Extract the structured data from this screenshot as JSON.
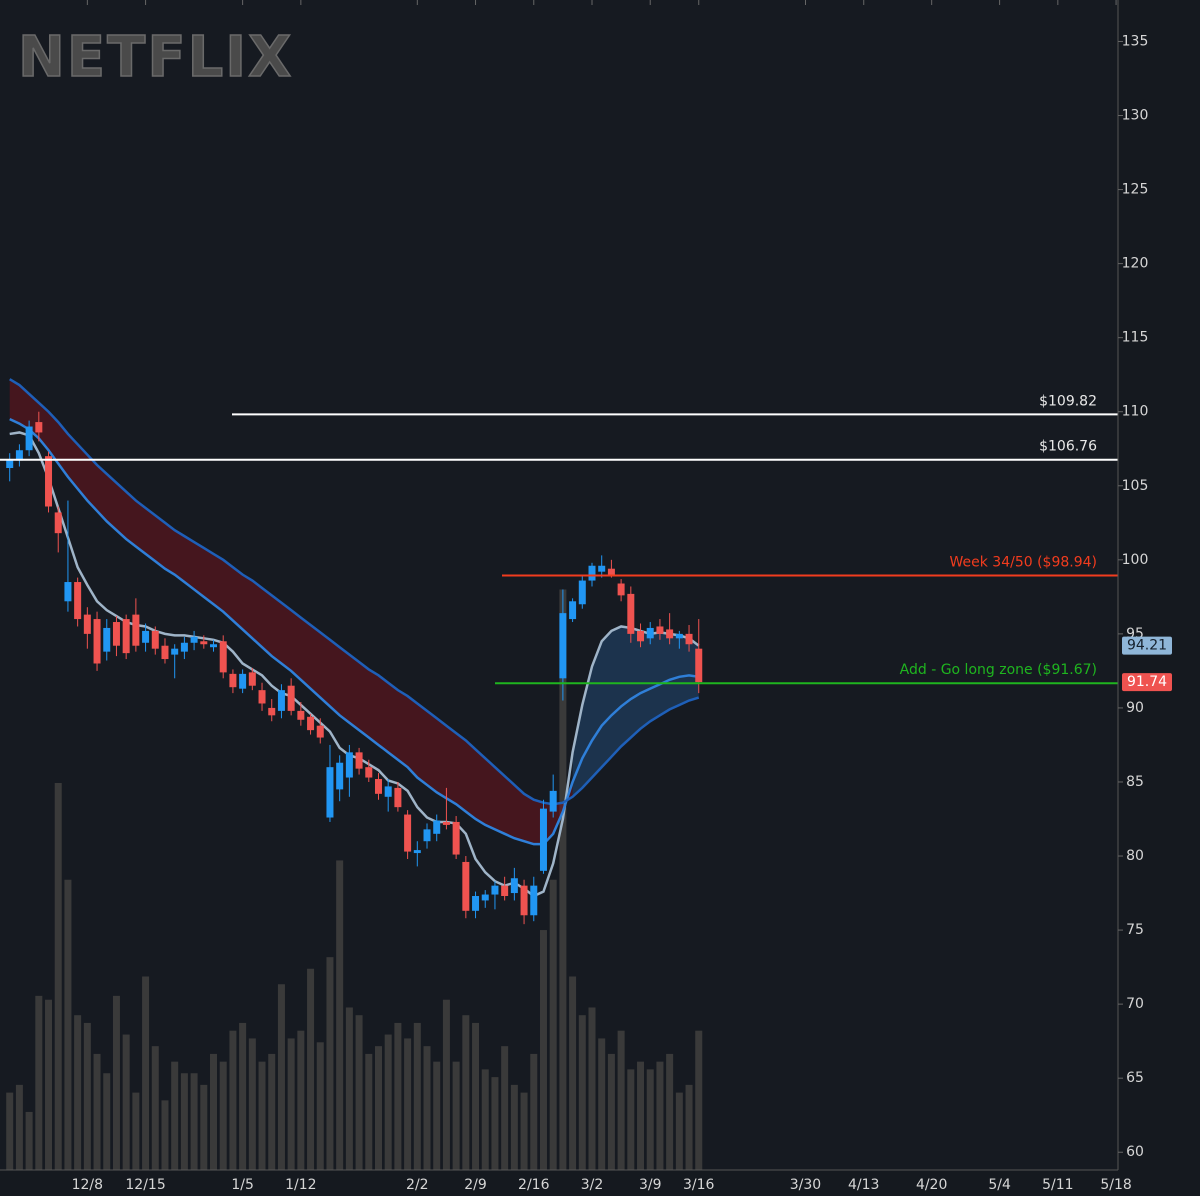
{
  "watermark": "NETFLIX",
  "chart_data": {
    "type": "candlestick",
    "up_color": "#2196f3",
    "down_color": "#ef5350",
    "volume_color": "#3a3a3a",
    "open": [
      106.2,
      106.7,
      107.4,
      109.3,
      107,
      103.2,
      97.2,
      98.5,
      96.3,
      96,
      93.8,
      95.8,
      96,
      96.3,
      94.4,
      95.2,
      94.2,
      93.6,
      93.8,
      94.4,
      94.5,
      94.1,
      94.5,
      92.3,
      91.3,
      92.4,
      91.2,
      90,
      89.8,
      91.5,
      89.8,
      89.4,
      88.8,
      82.6,
      84.5,
      85.3,
      87,
      86,
      85.2,
      84,
      84.6,
      82.8,
      80.2,
      81,
      81.5,
      82.3,
      82.3,
      79.6,
      76.3,
      77,
      77.4,
      78,
      77.5,
      78,
      76,
      79,
      83,
      92,
      96,
      97,
      98.6,
      99.2,
      99.4,
      98.4,
      97.7,
      95.2,
      94.7,
      95.5,
      95.3,
      94.7,
      95,
      94
    ],
    "high": [
      107.2,
      107.8,
      109.4,
      110,
      107.3,
      103.6,
      104,
      98.8,
      96.8,
      96.5,
      96,
      96.2,
      96.3,
      97.4,
      95.7,
      95.5,
      94.7,
      94.3,
      94.8,
      95.2,
      94.9,
      94.6,
      94.9,
      92.6,
      92.6,
      92.7,
      91.7,
      90.6,
      91.6,
      92,
      90.4,
      89.6,
      89.3,
      87.5,
      86.8,
      87.5,
      87.3,
      86.5,
      85.6,
      85.2,
      85,
      83.1,
      81,
      82.2,
      82.8,
      84.6,
      82.7,
      80,
      77.6,
      77.7,
      78.3,
      78.6,
      79.2,
      78.4,
      78.6,
      83.8,
      85.5,
      98,
      97.4,
      99,
      99.8,
      100.3,
      100,
      98.7,
      98.2,
      95.7,
      95.8,
      96,
      96.4,
      95.2,
      95.6,
      96
    ],
    "low": [
      105.3,
      106.3,
      107,
      108,
      103.2,
      100.5,
      96.5,
      95.5,
      94,
      92.5,
      93.2,
      93.5,
      93.3,
      93.8,
      93.8,
      93.6,
      93,
      92,
      93.3,
      93.9,
      94,
      93.8,
      92,
      91,
      91,
      91.2,
      89.8,
      89.1,
      89.3,
      89.5,
      88.8,
      88.2,
      87.6,
      82.3,
      83.7,
      84,
      85.5,
      85,
      83.8,
      83,
      83,
      79.8,
      79.3,
      80.5,
      81,
      81.8,
      79.8,
      75.8,
      75.8,
      76.5,
      76.4,
      77,
      77,
      75.4,
      75.6,
      78.8,
      82.6,
      90.5,
      95.8,
      96.7,
      98.2,
      98.8,
      98.8,
      97.2,
      94.4,
      94.1,
      94.3,
      94.6,
      94.3,
      94,
      93.8,
      91
    ],
    "close": [
      106.8,
      107.4,
      109,
      108.6,
      103.6,
      101.8,
      98.5,
      96,
      95,
      93,
      95.4,
      94.2,
      93.7,
      94.2,
      95.2,
      94,
      93.3,
      94,
      94.4,
      94.8,
      94.3,
      94.3,
      92.4,
      91.4,
      92.3,
      91.5,
      90.3,
      89.5,
      91.2,
      89.8,
      89.2,
      88.5,
      88,
      86,
      86.3,
      87,
      85.9,
      85.3,
      84.2,
      84.7,
      83.3,
      80.3,
      80.4,
      81.8,
      82.4,
      82.1,
      80.1,
      76.3,
      77.3,
      77.4,
      78,
      77.3,
      78.5,
      76,
      78,
      83.2,
      84.4,
      96.4,
      97.2,
      98.6,
      99.6,
      99.6,
      99,
      97.6,
      95,
      94.5,
      95.4,
      95,
      94.7,
      95,
      94.3,
      91.74
    ],
    "volume": [
      20,
      22,
      15,
      45,
      44,
      100,
      75,
      40,
      38,
      30,
      25,
      45,
      35,
      20,
      50,
      32,
      18,
      28,
      25,
      25,
      22,
      30,
      28,
      36,
      38,
      34,
      28,
      30,
      48,
      34,
      36,
      52,
      33,
      55,
      80,
      42,
      40,
      30,
      32,
      35,
      38,
      34,
      38,
      32,
      28,
      44,
      28,
      40,
      38,
      26,
      24,
      32,
      22,
      20,
      30,
      62,
      75,
      150,
      50,
      40,
      42,
      34,
      30,
      36,
      26,
      28,
      26,
      28,
      30,
      20,
      22,
      36
    ],
    "lines": [
      {
        "color": "#9fb4c8",
        "values": [
          108.5,
          108.6,
          108.4,
          107.2,
          105.5,
          103.5,
          101.5,
          99.5,
          98.3,
          97.2,
          96.6,
          96.2,
          95.8,
          95.6,
          95.5,
          95.2,
          95,
          94.9,
          94.9,
          94.8,
          94.7,
          94.6,
          94.4,
          93.8,
          93,
          92.6,
          92.2,
          91.5,
          91,
          90.8,
          90.2,
          89.6,
          89,
          88.4,
          87.3,
          86.8,
          86.6,
          86.2,
          85.8,
          85.1,
          84.9,
          84.4,
          83.3,
          82.6,
          82.3,
          82.3,
          82.2,
          81.5,
          79.8,
          78.9,
          78.3,
          78,
          78.2,
          77.8,
          77.3,
          77.6,
          79.5,
          82.5,
          87,
          90.2,
          92.8,
          94.5,
          95.2,
          95.5,
          95.4,
          95.2,
          95,
          95.1,
          95,
          94.9,
          94.7,
          94.21
        ]
      },
      {
        "color": "#2f7fd8",
        "values": [
          109.5,
          109.2,
          108.8,
          108.2,
          107.4,
          106.5,
          105.6,
          104.8,
          104,
          103.3,
          102.6,
          102,
          101.4,
          100.9,
          100.4,
          99.9,
          99.4,
          99,
          98.5,
          98,
          97.5,
          97,
          96.5,
          95.9,
          95.3,
          94.7,
          94.1,
          93.5,
          93,
          92.5,
          91.9,
          91.3,
          90.7,
          90.1,
          89.5,
          89,
          88.5,
          88,
          87.5,
          87,
          86.5,
          86,
          85.3,
          84.8,
          84.3,
          83.9,
          83.5,
          83,
          82.5,
          82.1,
          81.8,
          81.5,
          81.2,
          81,
          80.8,
          80.8,
          81.5,
          83,
          85,
          86.6,
          87.8,
          88.8,
          89.5,
          90.1,
          90.6,
          91,
          91.3,
          91.6,
          91.9,
          92.1,
          92.2,
          92.1
        ]
      },
      {
        "color": "#1e5fb8",
        "values": [
          112.2,
          111.8,
          111.2,
          110.6,
          110,
          109.3,
          108.5,
          107.8,
          107.1,
          106.4,
          105.8,
          105.2,
          104.6,
          104,
          103.5,
          103,
          102.5,
          102,
          101.6,
          101.2,
          100.8,
          100.4,
          100,
          99.5,
          99,
          98.6,
          98.1,
          97.6,
          97.1,
          96.6,
          96.1,
          95.6,
          95.1,
          94.6,
          94.1,
          93.6,
          93.1,
          92.6,
          92.2,
          91.7,
          91.2,
          90.8,
          90.3,
          89.8,
          89.3,
          88.8,
          88.3,
          87.8,
          87.2,
          86.6,
          86,
          85.4,
          84.8,
          84.2,
          83.8,
          83.6,
          83.5,
          83.6,
          84,
          84.6,
          85.3,
          86,
          86.7,
          87.4,
          88,
          88.6,
          89.1,
          89.5,
          89.9,
          90.2,
          90.5,
          90.7
        ]
      }
    ],
    "levels": [
      {
        "value": 109.82,
        "label": "$109.82",
        "color": "#ffffff"
      },
      {
        "value": 106.76,
        "label": "$106.76",
        "color": "#ffffff"
      },
      {
        "value": 98.94,
        "label": "Week 34/50 ($98.94)",
        "color": "#f23c1e"
      },
      {
        "value": 91.67,
        "label": "Add - Go long zone ($91.67)",
        "color": "#1fb51f"
      }
    ],
    "price_tags": [
      {
        "value": 94.21,
        "color": "#8fb6d8"
      },
      {
        "value": 91.74,
        "color": "#ef5350"
      }
    ],
    "xlim": [
      -1,
      114.2
    ],
    "xticks": [
      {
        "value": 8,
        "label": "12/8"
      },
      {
        "value": 14,
        "label": "12/15"
      },
      {
        "value": 24,
        "label": "1/5"
      },
      {
        "value": 30,
        "label": "1/12"
      },
      {
        "value": 42,
        "label": "2/2"
      },
      {
        "value": 48,
        "label": "2/9"
      },
      {
        "value": 54,
        "label": "2/16"
      },
      {
        "value": 60,
        "label": "3/2"
      },
      {
        "value": 66,
        "label": "3/9"
      },
      {
        "value": 71,
        "label": "3/16"
      },
      {
        "value": 82,
        "label": "3/30"
      },
      {
        "value": 88,
        "label": "4/13"
      },
      {
        "value": 95,
        "label": "4/20"
      },
      {
        "value": 102,
        "label": "5/4"
      },
      {
        "value": 108,
        "label": "5/11"
      },
      {
        "value": 114,
        "label": "5/18"
      }
    ],
    "ylim": [
      58.8,
      137.8
    ],
    "yticks": [
      60,
      65,
      70,
      75,
      80,
      85,
      90,
      95,
      100,
      105,
      110,
      115,
      120,
      125,
      130,
      135
    ]
  }
}
